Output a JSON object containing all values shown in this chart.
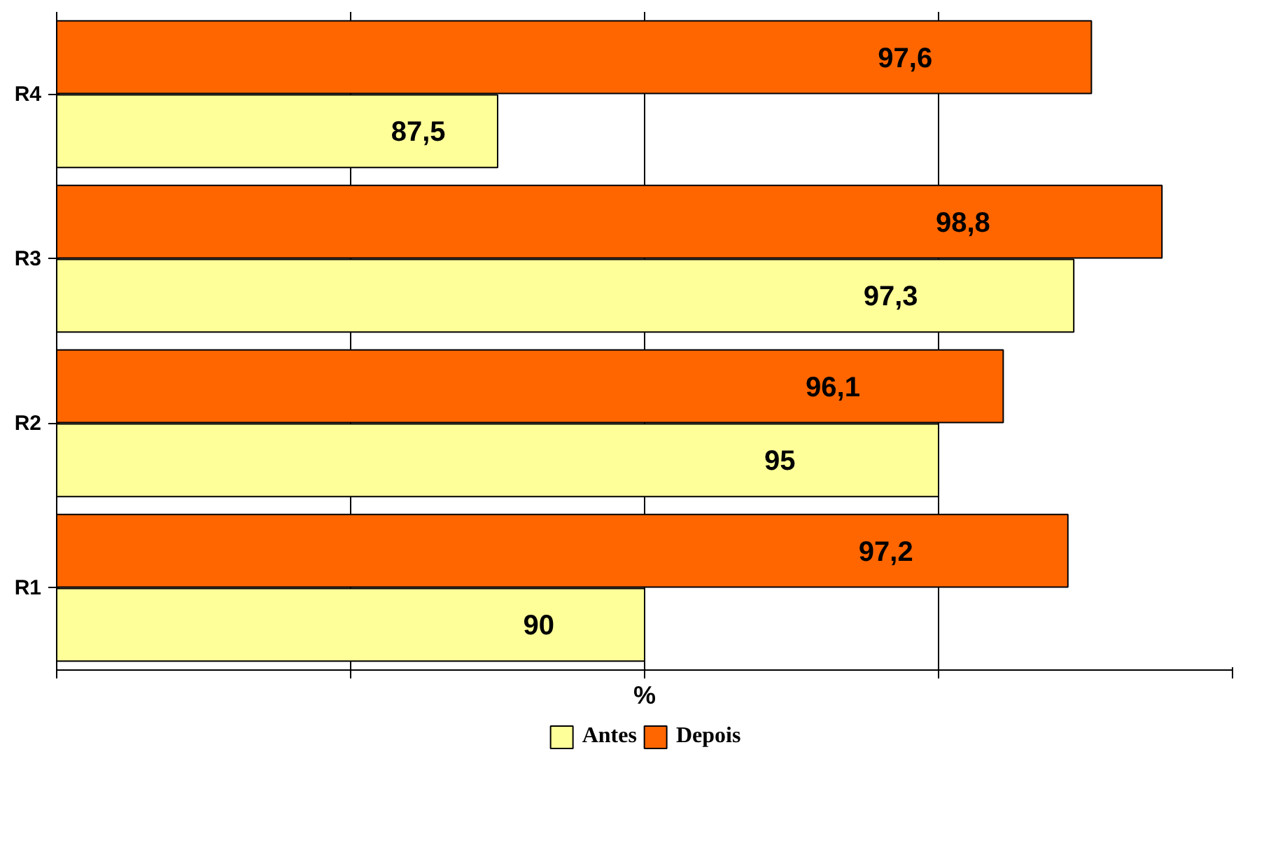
{
  "chart_data": {
    "type": "bar",
    "orientation": "horizontal",
    "categories": [
      "R4",
      "R3",
      "R2",
      "R1"
    ],
    "xlabel": "%",
    "series": [
      {
        "name": "Antes",
        "color": "#ffff99",
        "values": [
          87.5,
          97.3,
          95,
          90
        ],
        "value_labels": [
          "87,5",
          "97,3",
          "95",
          "90"
        ]
      },
      {
        "name": "Depois",
        "color": "#ff6600",
        "values": [
          97.6,
          98.8,
          96.1,
          97.2
        ],
        "value_labels": [
          "97,6",
          "98,8",
          "96,1",
          "97,2"
        ]
      }
    ],
    "xlim": [
      80,
      100
    ],
    "xticks": [
      {
        "value": 80,
        "label": null
      },
      {
        "value": 85,
        "label": null
      },
      {
        "value": 90,
        "label": null
      },
      {
        "value": 95,
        "label": null
      },
      {
        "value": 100,
        "label": null
      }
    ],
    "tick_labels": "y",
    "grid": "x",
    "legend": "bottom"
  }
}
